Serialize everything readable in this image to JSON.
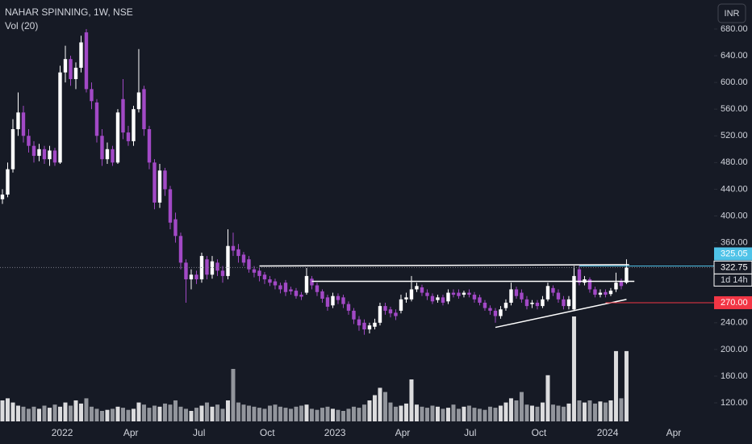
{
  "chart_data": {
    "type": "candlestick",
    "title": "NAHAR SPINNING, 1W, NSE",
    "subtitle": "Vol (20)",
    "currency": "INR",
    "up_color": "#ffffff",
    "down_color": "#a249c6",
    "up_volume_color": "#ffffff",
    "down_volume_color": "#a8abb2",
    "open": [
      425,
      432,
      470,
      530,
      555,
      520,
      505,
      490,
      500,
      485,
      498,
      480,
      615,
      635,
      605,
      622,
      675,
      590,
      570,
      520,
      485,
      500,
      480,
      575,
      525,
      512,
      560,
      590,
      530,
      480,
      420,
      468,
      440,
      395,
      370,
      330,
      305,
      312,
      305,
      335,
      312,
      330,
      318,
      310,
      355,
      350,
      342,
      335,
      320,
      318,
      312,
      305,
      302,
      296,
      300,
      290,
      288,
      282,
      285,
      306,
      296,
      287,
      278,
      266,
      280,
      278,
      268,
      258,
      245,
      240,
      230,
      234,
      240,
      265,
      260,
      255,
      258,
      275,
      275,
      290,
      293,
      285,
      280,
      274,
      278,
      272,
      285,
      285,
      282,
      285,
      282,
      278,
      270,
      262,
      258,
      250,
      262,
      270,
      290,
      285,
      275,
      268,
      270,
      265,
      275,
      292,
      285,
      275,
      265,
      260,
      320,
      300,
      305,
      290,
      282,
      286,
      283,
      290,
      302,
      300
    ],
    "high": [
      440,
      480,
      545,
      585,
      565,
      530,
      512,
      508,
      505,
      505,
      502,
      625,
      655,
      640,
      630,
      670,
      680,
      600,
      575,
      530,
      510,
      505,
      560,
      605,
      535,
      565,
      650,
      595,
      535,
      485,
      478,
      472,
      445,
      405,
      375,
      335,
      320,
      318,
      345,
      340,
      340,
      335,
      325,
      380,
      375,
      358,
      346,
      340,
      325,
      322,
      316,
      310,
      306,
      300,
      304,
      294,
      292,
      286,
      322,
      310,
      300,
      290,
      282,
      285,
      284,
      282,
      272,
      262,
      250,
      245,
      240,
      246,
      270,
      270,
      264,
      260,
      282,
      285,
      310,
      300,
      297,
      290,
      284,
      282,
      282,
      290,
      290,
      290,
      288,
      290,
      286,
      282,
      274,
      266,
      262,
      265,
      275,
      300,
      294,
      290,
      280,
      274,
      274,
      280,
      300,
      296,
      290,
      280,
      280,
      325,
      325,
      310,
      308,
      294,
      290,
      290,
      292,
      315,
      306,
      335
    ],
    "low": [
      418,
      428,
      465,
      520,
      510,
      495,
      480,
      482,
      478,
      475,
      475,
      478,
      600,
      595,
      590,
      615,
      585,
      560,
      510,
      475,
      478,
      475,
      478,
      515,
      505,
      505,
      555,
      520,
      470,
      410,
      412,
      430,
      380,
      360,
      320,
      270,
      290,
      298,
      300,
      305,
      306,
      310,
      300,
      305,
      340,
      330,
      325,
      315,
      308,
      302,
      298,
      295,
      290,
      284,
      280,
      282,
      276,
      274,
      282,
      290,
      280,
      270,
      258,
      262,
      268,
      262,
      252,
      238,
      228,
      222,
      224,
      230,
      236,
      252,
      248,
      244,
      254,
      270,
      272,
      286,
      280,
      274,
      268,
      270,
      266,
      268,
      278,
      276,
      278,
      278,
      270,
      266,
      258,
      252,
      240,
      246,
      258,
      266,
      276,
      270,
      260,
      262,
      260,
      262,
      272,
      280,
      270,
      260,
      260,
      258,
      296,
      296,
      285,
      278,
      278,
      278,
      280,
      286,
      290,
      298
    ],
    "close": [
      432,
      470,
      530,
      555,
      520,
      505,
      490,
      500,
      485,
      498,
      480,
      615,
      635,
      605,
      622,
      660,
      590,
      572,
      520,
      485,
      500,
      480,
      555,
      525,
      512,
      560,
      585,
      530,
      480,
      420,
      468,
      440,
      390,
      370,
      330,
      305,
      312,
      305,
      340,
      312,
      332,
      318,
      310,
      355,
      348,
      340,
      330,
      320,
      315,
      310,
      305,
      300,
      296,
      290,
      286,
      287,
      280,
      279,
      310,
      296,
      286,
      276,
      264,
      280,
      274,
      268,
      258,
      245,
      236,
      230,
      236,
      240,
      265,
      258,
      254,
      250,
      275,
      278,
      290,
      295,
      285,
      280,
      272,
      278,
      270,
      285,
      282,
      280,
      285,
      282,
      275,
      270,
      262,
      258,
      250,
      260,
      270,
      290,
      280,
      275,
      265,
      270,
      265,
      275,
      295,
      285,
      275,
      265,
      275,
      310,
      300,
      305,
      290,
      282,
      285,
      282,
      288,
      300,
      295,
      322.75
    ],
    "volume": [
      20,
      22,
      18,
      15,
      14,
      12,
      14,
      12,
      15,
      13,
      16,
      14,
      18,
      15,
      20,
      17,
      22,
      14,
      12,
      10,
      11,
      12,
      14,
      13,
      11,
      12,
      18,
      16,
      13,
      15,
      14,
      17,
      16,
      20,
      14,
      12,
      10,
      13,
      15,
      18,
      14,
      16,
      12,
      20,
      50,
      18,
      16,
      15,
      14,
      13,
      12,
      15,
      16,
      14,
      13,
      12,
      14,
      15,
      16,
      12,
      11,
      13,
      14,
      12,
      11,
      10,
      12,
      14,
      13,
      16,
      20,
      25,
      32,
      28,
      18,
      14,
      15,
      17,
      40,
      16,
      14,
      13,
      15,
      14,
      12,
      13,
      16,
      12,
      14,
      15,
      13,
      12,
      11,
      14,
      13,
      15,
      18,
      22,
      20,
      28,
      16,
      15,
      14,
      18,
      44,
      16,
      15,
      14,
      17,
      100,
      20,
      18,
      20,
      17,
      19,
      18,
      20,
      67,
      22,
      67
    ],
    "ylim": [
      92.2,
      723.5
    ],
    "yticks": [
      {
        "value": 120,
        "label": "120.00"
      },
      {
        "value": 160,
        "label": "160.00"
      },
      {
        "value": 200,
        "label": "200.00"
      },
      {
        "value": 240,
        "label": "240.00"
      },
      {
        "value": 360,
        "label": "360.00"
      },
      {
        "value": 400,
        "label": "400.00"
      },
      {
        "value": 440,
        "label": "440.00"
      },
      {
        "value": 480,
        "label": "480.00"
      },
      {
        "value": 520,
        "label": "520.00"
      },
      {
        "value": 560,
        "label": "560.00"
      },
      {
        "value": 600,
        "label": "600.00"
      },
      {
        "value": 640,
        "label": "640.00"
      },
      {
        "value": 680,
        "label": "680.00"
      }
    ],
    "xlim": [
      -0.46,
      135.7
    ],
    "xticks": [
      {
        "value": 11.4,
        "label": "2022"
      },
      {
        "value": 24.5,
        "label": "Apr"
      },
      {
        "value": 37.5,
        "label": "Jul"
      },
      {
        "value": 50.5,
        "label": "Oct"
      },
      {
        "value": 63.4,
        "label": "2023"
      },
      {
        "value": 76.3,
        "label": "Apr"
      },
      {
        "value": 89.2,
        "label": "Jul"
      },
      {
        "value": 102.3,
        "label": "Oct"
      },
      {
        "value": 115.4,
        "label": "2024"
      },
      {
        "value": 128,
        "label": "Apr"
      }
    ],
    "vol_lim": [
      0,
      100
    ],
    "trend_lines": [
      {
        "color": "#ffffff",
        "points": [
          [
            49,
            325
          ],
          [
            119.5,
            327
          ]
        ]
      },
      {
        "color": "#ffffff",
        "points": [
          [
            59,
            302
          ],
          [
            120.5,
            302
          ]
        ]
      },
      {
        "color": "#ffffff",
        "points": [
          [
            94,
            233
          ],
          [
            119,
            275
          ]
        ]
      }
    ],
    "price_lines": [
      {
        "value": 325.05,
        "label": "325.05",
        "color": "#4fc3e8",
        "start": 110
      },
      {
        "value": 322.75,
        "label": "322.75",
        "color": "#ffffff",
        "start": -0.46,
        "countdown": "1d 14h"
      },
      {
        "value": 270,
        "label": "270.00",
        "color": "#f23645",
        "start": 115
      }
    ]
  }
}
